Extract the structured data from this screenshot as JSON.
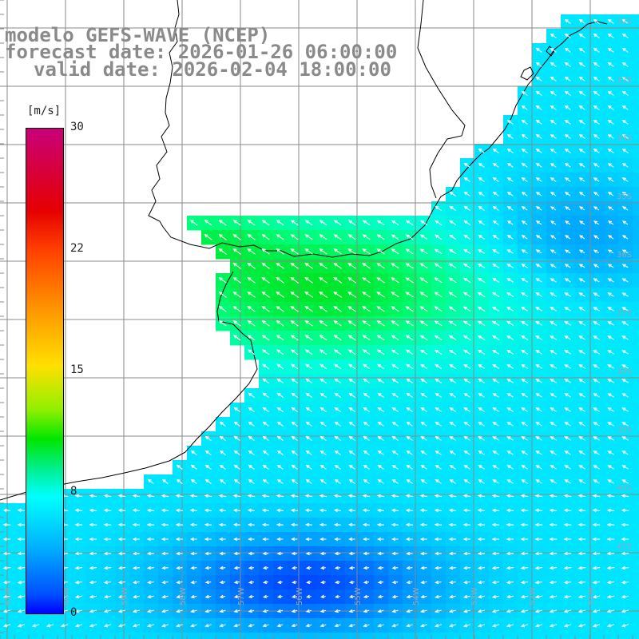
{
  "header": {
    "model_line": "modelo GEFS-WAVE (NCEP)",
    "forecast_line": "forecast date: 2026-01-26 06:00:00",
    "valid_line": "valid date: 2026-02-04 18:00:00"
  },
  "colorbar": {
    "unit": "[m/s]",
    "ticks": [
      "30",
      "22",
      "15",
      "8",
      "0"
    ],
    "range": [
      0,
      30
    ],
    "tick_values": [
      30,
      22,
      15,
      8,
      0
    ],
    "colors": {
      "max": "#c8007a",
      "red": "#e60000",
      "orange": "#ff9a00",
      "yellow": "#ffe000",
      "green": "#00e600",
      "cyan": "#00ffff",
      "blue": "#0050ff",
      "min": "#0000ff"
    }
  },
  "map": {
    "variable": "wind speed and direction",
    "background_color": "#ffffff",
    "land_color": "#ffffff",
    "grid_color": "#8a8a8a",
    "coastline_color": "#000000",
    "arrow_color": "#ffffff",
    "grid": true,
    "lat_labels": [
      "32S",
      "33S",
      "34S",
      "35S",
      "36S",
      "37S",
      "38S",
      "39S",
      "40S",
      "41S"
    ],
    "lon_labels": [
      "61W",
      "60W",
      "59W",
      "58W",
      "57W",
      "56W",
      "55W",
      "54W",
      "53W",
      "52W",
      "51W"
    ]
  }
}
